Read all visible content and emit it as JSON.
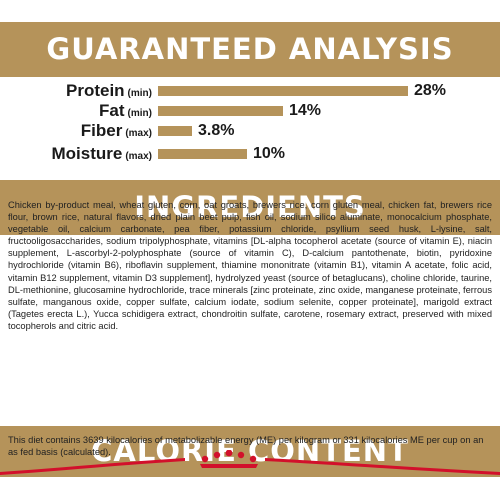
{
  "guaranteed_analysis": {
    "title": "GUARANTEED ANALYSIS",
    "rows": [
      {
        "label": "Protein",
        "qualifier": "(min)",
        "value": "28%",
        "fraction": 1.0
      },
      {
        "label": "Fat",
        "qualifier": "(min)",
        "value": "14%",
        "fraction": 0.5
      },
      {
        "label": "Fiber",
        "qualifier": "(max)",
        "value": "3.8%",
        "fraction": 0.136
      },
      {
        "label": "Moisture",
        "qualifier": "(max)",
        "value": "10%",
        "fraction": 0.357
      }
    ]
  },
  "ingredients": {
    "title": "INGREDIENTS",
    "text": "Chicken by-product meal, wheat gluten, corn, oat groats, brewers rice, corn gluten meal, chicken fat, brewers rice flour, brown rice, natural flavors, dried plain beet pulp, fish oil, sodium silico aluminate, monocalcium phosphate, vegetable oil, calcium carbonate, pea fiber, potassium chloride, psyllium seed husk, L-lysine, salt, fructooligosaccharides, sodium tripolyphosphate, vitamins [DL-alpha tocopherol acetate (source of vitamin E), niacin supplement, L-ascorbyl-2-polyphosphate (source of vitamin C), D-calcium pantothenate, biotin, pyridoxine hydrochloride (vitamin B6), riboflavin supplement, thiamine mononitrate (vitamin B1), vitamin A acetate, folic acid, vitamin B12 supplement, vitamin D3 supplement], hydrolyzed yeast (source of betaglucans), choline chloride, taurine, DL-methionine, glucosamine hydrochloride, trace minerals [zinc proteinate, zinc oxide, manganese proteinate, ferrous sulfate, manganous oxide, copper sulfate, calcium iodate, sodium selenite, copper proteinate], marigold extract (Tagetes erecta L.), Yucca schidigera extract, chondroitin sulfate, carotene, rosemary extract, preserved with mixed tocopherols and citric acid."
  },
  "calorie_content": {
    "title": "CALORIE CONTENT",
    "text": "This diet contains 3639 kilocalories of metabolizable energy (ME) per kilogram or 331 kilocalories ME per cup on an as fed basis (calculated)."
  },
  "colors": {
    "banner": "#b5935a",
    "bar": "#b5935a",
    "logo_red": "#d2102b"
  },
  "icons": {
    "logo": "royal-canin-crown-logo"
  }
}
